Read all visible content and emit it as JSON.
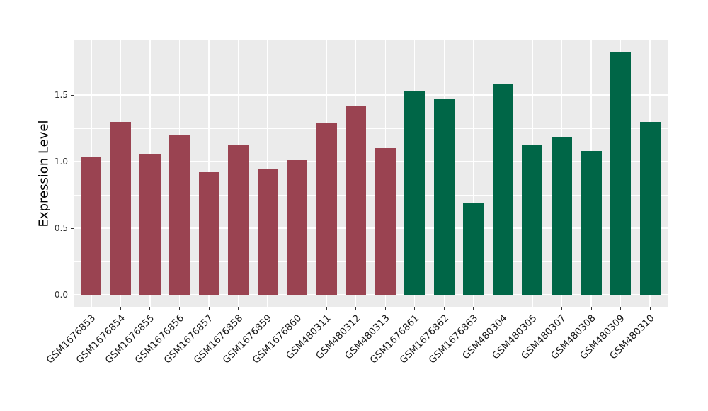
{
  "chart_data": {
    "type": "bar",
    "title": "",
    "xlabel": "",
    "ylabel": "Expression Level",
    "categories": [
      "GSM1676853",
      "GSM1676854",
      "GSM1676855",
      "GSM1676856",
      "GSM1676857",
      "GSM1676858",
      "GSM1676859",
      "GSM1676860",
      "GSM480311",
      "GSM480312",
      "GSM480313",
      "GSM1676861",
      "GSM1676862",
      "GSM1676863",
      "GSM480304",
      "GSM480305",
      "GSM480307",
      "GSM480308",
      "GSM480309",
      "GSM480310"
    ],
    "values": [
      1.03,
      1.3,
      1.06,
      1.2,
      0.92,
      1.12,
      0.94,
      1.01,
      1.29,
      1.42,
      1.1,
      1.53,
      1.47,
      0.69,
      1.58,
      1.12,
      1.18,
      1.08,
      1.82,
      1.3
    ],
    "groups": [
      0,
      0,
      0,
      0,
      0,
      0,
      0,
      0,
      0,
      0,
      0,
      1,
      1,
      1,
      1,
      1,
      1,
      1,
      1,
      1
    ],
    "group_colors": [
      "#9A4351",
      "#006647"
    ],
    "y_ticks": [
      0.0,
      0.5,
      1.0,
      1.5
    ],
    "y_tick_labels": [
      "0.0",
      "0.5",
      "1.0",
      "1.5"
    ],
    "y_minor_ticks": [
      0.25,
      0.75,
      1.25,
      1.75
    ],
    "ylim": [
      -0.09,
      1.915
    ],
    "bar_width_frac": 0.7,
    "grid": true,
    "legend_position": "none",
    "panel_bg": "#EBEBEB",
    "grid_color": "#FFFFFF",
    "tick_color": "#333333"
  }
}
